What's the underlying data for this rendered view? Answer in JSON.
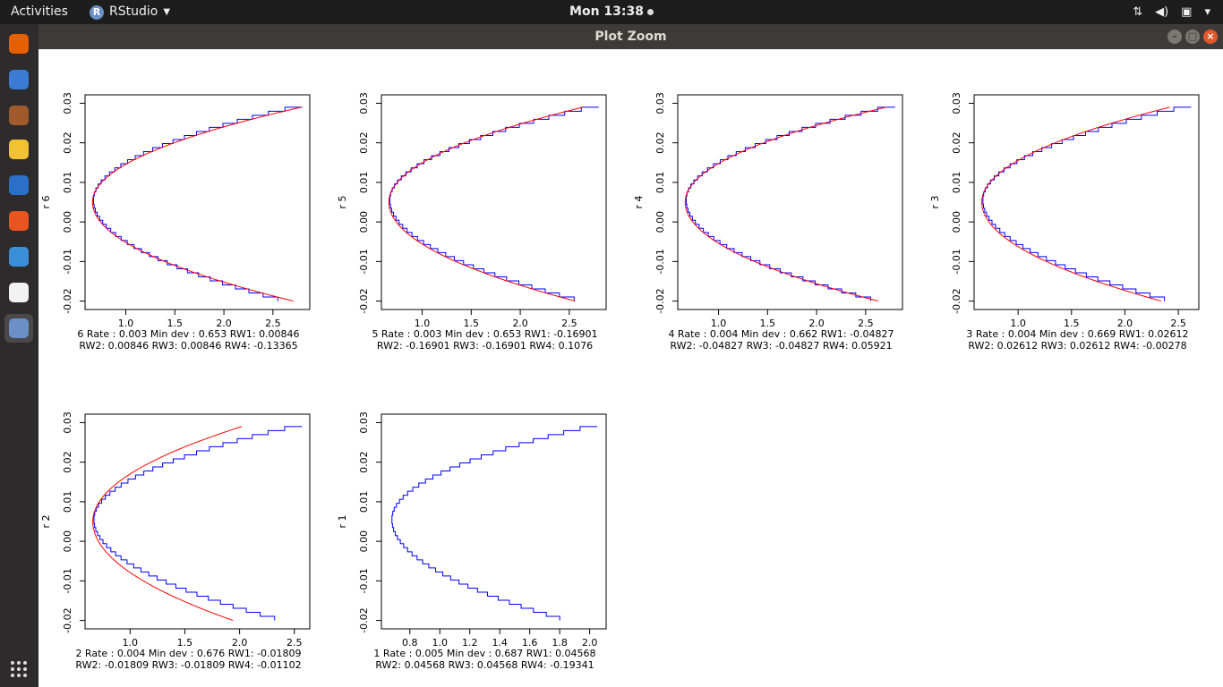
{
  "topbar": {
    "activities": "Activities",
    "app_name": "RStudio",
    "clock": "Mon 13:38"
  },
  "launcher": {
    "items": [
      {
        "name": "firefox-icon",
        "color": "#e66000"
      },
      {
        "name": "thunderbird-icon",
        "color": "#3a7bd5"
      },
      {
        "name": "files-icon",
        "color": "#a05a2c"
      },
      {
        "name": "rhythmbox-icon",
        "color": "#f1c232"
      },
      {
        "name": "libreoffice-writer-icon",
        "color": "#2a6fc9"
      },
      {
        "name": "software-center-icon",
        "color": "#e95420"
      },
      {
        "name": "help-icon",
        "color": "#3b8fd9"
      },
      {
        "name": "amazon-icon",
        "color": "#f2f2f2"
      },
      {
        "name": "rstudio-icon",
        "color": "#6b8fc7"
      }
    ]
  },
  "window": {
    "title": "Plot Zoom"
  },
  "plots": [
    {
      "ylabel": "r 6",
      "xticks": [
        1.0,
        1.5,
        2.0,
        2.5
      ],
      "xtick_labels": [
        "1.0",
        "1.5",
        "2.0",
        "2.5"
      ],
      "xlim": [
        0.63,
        2.83
      ],
      "fit_end": 2.8,
      "caption1": "6   Rate : 0.003 Min dev : 0.653 RW1:  0.00846",
      "caption2": "RW2:  0.00846 RW3:  0.00846 RW4:  -0.13365",
      "has_red": true
    },
    {
      "ylabel": "r 5",
      "xticks": [
        1.0,
        1.5,
        2.0,
        2.5
      ],
      "xtick_labels": [
        "1.0",
        "1.5",
        "2.0",
        "2.5"
      ],
      "xlim": [
        0.63,
        2.83
      ],
      "fit_end": 2.65,
      "caption1": "5   Rate : 0.003 Min dev : 0.653 RW1:  -0.16901",
      "caption2": "RW2:  -0.16901 RW3:  -0.16901 RW4:  0.1076",
      "has_red": true
    },
    {
      "ylabel": "r 4",
      "xticks": [
        1.0,
        1.5,
        2.0,
        2.5
      ],
      "xtick_labels": [
        "1.0",
        "1.5",
        "2.0",
        "2.5"
      ],
      "xlim": [
        0.63,
        2.83
      ],
      "fit_end": 2.72,
      "caption1": "4   Rate : 0.004 Min dev : 0.662 RW1:  -0.04827",
      "caption2": "RW2:  -0.04827 RW3:  -0.04827 RW4:  0.05921",
      "has_red": true
    },
    {
      "ylabel": "r 3",
      "xticks": [
        1.0,
        1.5,
        2.0,
        2.5
      ],
      "xtick_labels": [
        "1.0",
        "1.5",
        "2.0",
        "2.5"
      ],
      "xlim": [
        0.63,
        2.65
      ],
      "fit_end": 2.43,
      "caption1": "3   Rate : 0.004 Min dev : 0.669 RW1:  0.02612",
      "caption2": "RW2:  0.02612 RW3:  0.02612 RW4:  -0.00278",
      "has_red": true
    },
    {
      "ylabel": "r 2",
      "xticks": [
        1.0,
        1.5,
        2.0,
        2.5
      ],
      "xtick_labels": [
        "1.0",
        "1.5",
        "2.0",
        "2.5"
      ],
      "xlim": [
        0.63,
        2.6
      ],
      "fit_end": 2.03,
      "caption1": "2   Rate : 0.004 Min dev : 0.676 RW1:  -0.01809",
      "caption2": "RW2:  -0.01809 RW3:  -0.01809 RW4:  -0.01102",
      "has_red": true
    },
    {
      "ylabel": "r 1",
      "xticks": [
        0.8,
        1.0,
        1.2,
        1.4,
        1.6,
        1.8,
        2.0
      ],
      "xtick_labels": [
        "0.8",
        "1.0",
        "1.2",
        "1.4",
        "1.6",
        "1.8",
        "2.0"
      ],
      "xlim": [
        0.64,
        2.08
      ],
      "fit_end": 0,
      "caption1": "1   Rate : 0.005 Min dev : 0.687 RW1:  0.04568",
      "caption2": "RW2:  0.04568 RW3:  0.04568 RW4:  -0.19341",
      "has_red": false
    }
  ],
  "chart_data": [
    {
      "type": "line",
      "ylabel": "r 6",
      "y_ticks": [
        -0.02,
        -0.01,
        0.0,
        0.01,
        0.02,
        0.03
      ],
      "ylim": [
        -0.021,
        0.031
      ],
      "xlim": [
        0.63,
        2.83
      ],
      "series": [
        {
          "color": "#0000ff"
        },
        {
          "color": "#ff0000"
        }
      ]
    },
    {
      "type": "line",
      "ylabel": "r 5",
      "y_ticks": [
        -0.02,
        -0.01,
        0.0,
        0.01,
        0.02,
        0.03
      ],
      "ylim": [
        -0.021,
        0.031
      ],
      "xlim": [
        0.63,
        2.83
      ],
      "series": [
        {
          "color": "#0000ff"
        },
        {
          "color": "#ff0000"
        }
      ]
    },
    {
      "type": "line",
      "ylabel": "r 4",
      "y_ticks": [
        -0.02,
        -0.01,
        0.0,
        0.01,
        0.02,
        0.03
      ],
      "ylim": [
        -0.021,
        0.031
      ],
      "xlim": [
        0.63,
        2.83
      ],
      "series": [
        {
          "color": "#0000ff"
        },
        {
          "color": "#ff0000"
        }
      ]
    },
    {
      "type": "line",
      "ylabel": "r 3",
      "y_ticks": [
        -0.02,
        -0.01,
        0.0,
        0.01,
        0.02,
        0.03
      ],
      "ylim": [
        -0.021,
        0.031
      ],
      "xlim": [
        0.63,
        2.65
      ],
      "series": [
        {
          "color": "#0000ff"
        },
        {
          "color": "#ff0000"
        }
      ]
    },
    {
      "type": "line",
      "ylabel": "r 2",
      "y_ticks": [
        -0.02,
        -0.01,
        0.0,
        0.01,
        0.02,
        0.03
      ],
      "ylim": [
        -0.021,
        0.031
      ],
      "xlim": [
        0.63,
        2.6
      ],
      "series": [
        {
          "color": "#0000ff"
        },
        {
          "color": "#ff0000"
        }
      ]
    },
    {
      "type": "line",
      "ylabel": "r 1",
      "y_ticks": [
        -0.02,
        -0.01,
        0.0,
        0.01,
        0.02,
        0.03
      ],
      "ylim": [
        -0.021,
        0.031
      ],
      "xlim": [
        0.64,
        2.08
      ],
      "series": [
        {
          "color": "#0000ff"
        }
      ]
    }
  ],
  "ytick_labels": [
    "-0.02",
    "-0.01",
    "0.00",
    "0.01",
    "0.02",
    "0.03"
  ],
  "yticks": [
    -0.02,
    -0.01,
    0.0,
    0.01,
    0.02,
    0.03
  ],
  "ylim": [
    -0.021,
    0.031
  ]
}
